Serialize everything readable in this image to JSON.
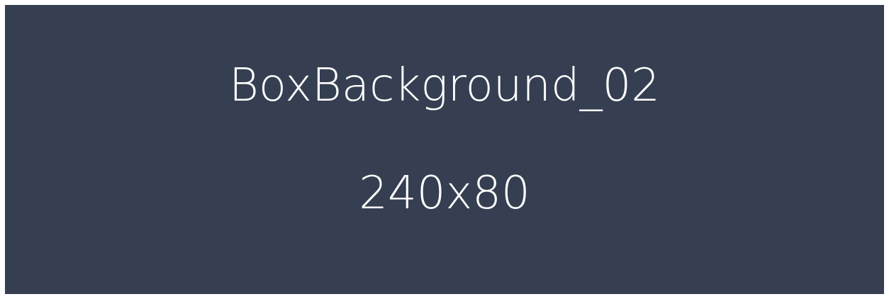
{
  "box": {
    "name": "BoxBackground_02",
    "size": "240x80",
    "background_color": "#353f51",
    "text_color": "#ffffff"
  }
}
